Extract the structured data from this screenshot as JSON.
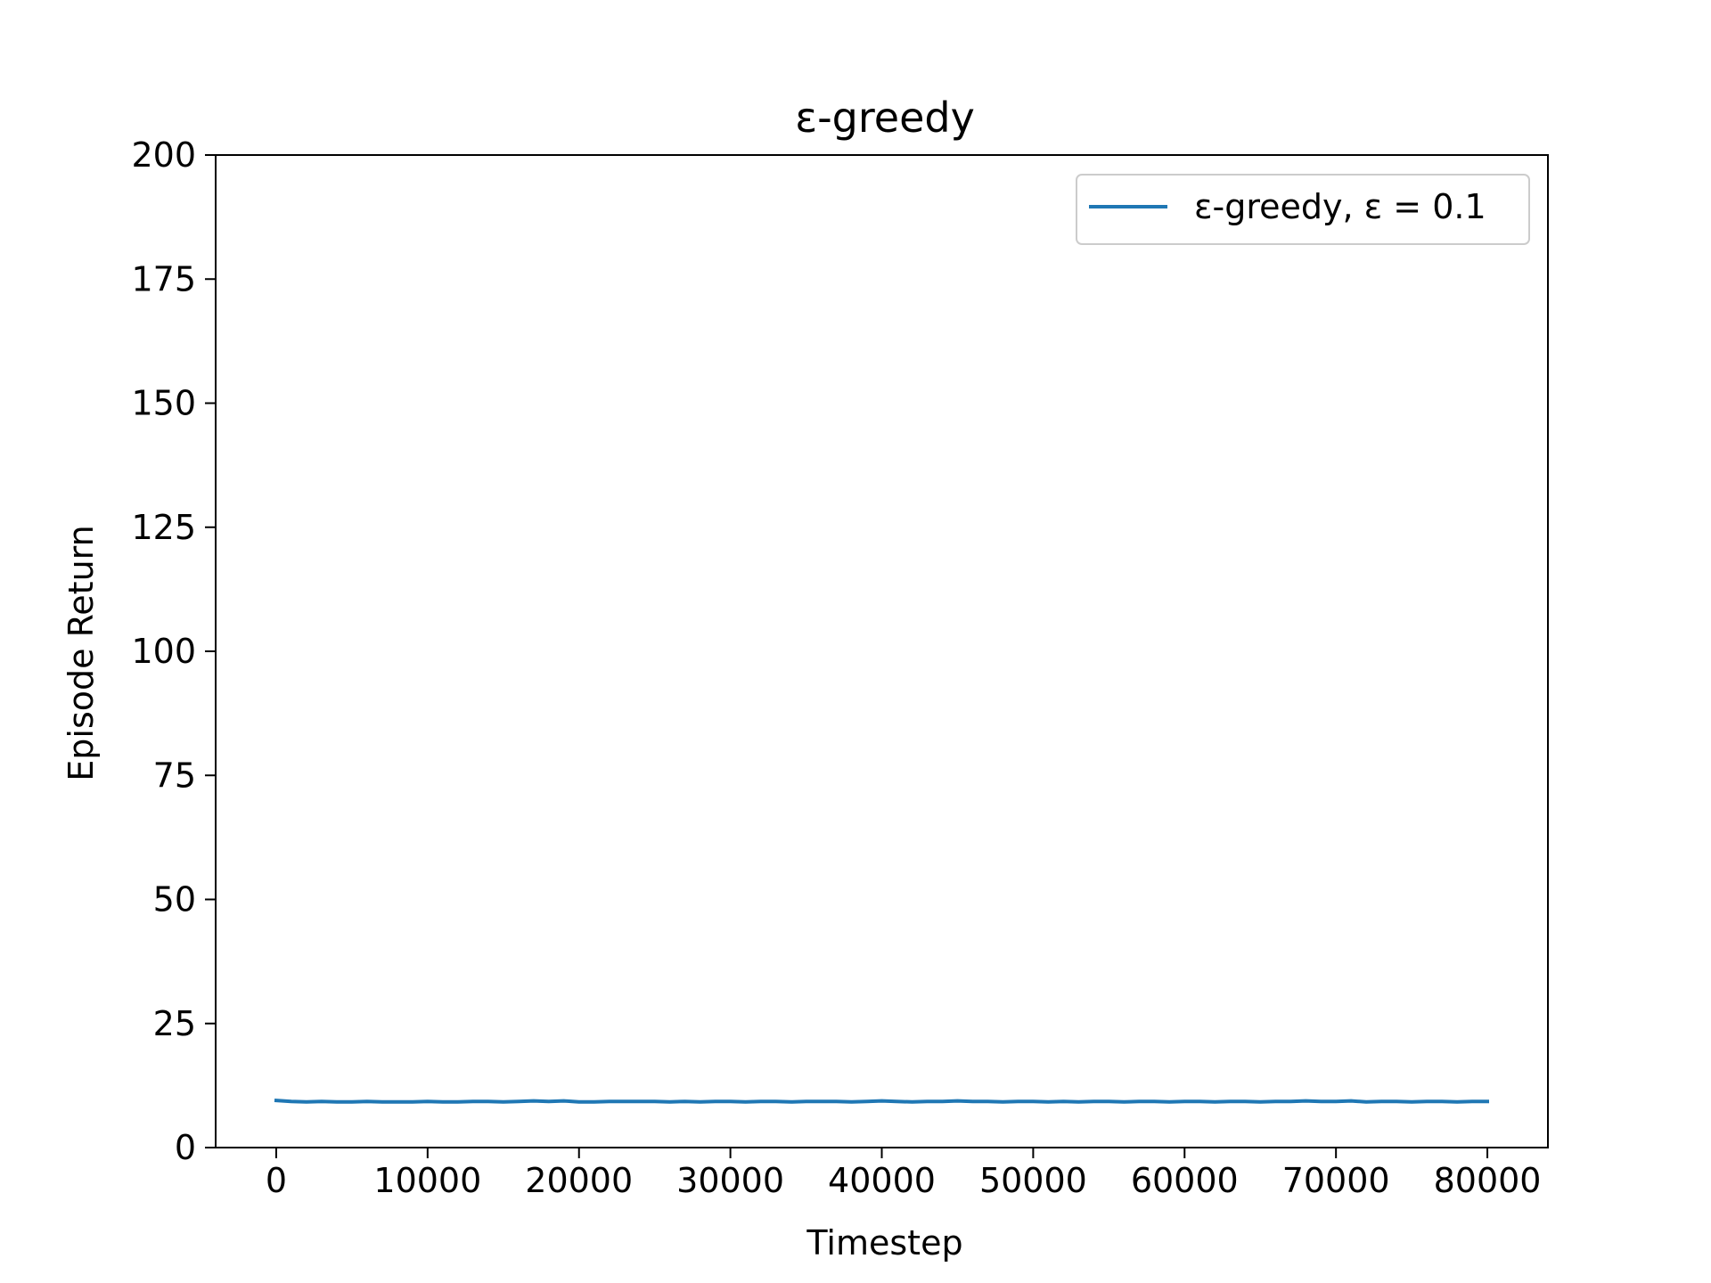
{
  "chart_data": {
    "type": "line",
    "title": "ε-greedy",
    "xlabel": "Timestep",
    "ylabel": "Episode Return",
    "xlim": [
      -4000,
      84000
    ],
    "ylim": [
      0,
      200
    ],
    "xticks": [
      "0",
      "10000",
      "20000",
      "30000",
      "40000",
      "50000",
      "60000",
      "70000",
      "80000"
    ],
    "yticks": [
      "0",
      "25",
      "50",
      "75",
      "100",
      "125",
      "150",
      "175",
      "200"
    ],
    "grid": false,
    "legend_position": "top-right",
    "series": [
      {
        "name": "ε-greedy, ε = 0.1",
        "color": "#1f77b4",
        "x": [
          0,
          1000,
          2000,
          3000,
          4000,
          5000,
          6000,
          7000,
          8000,
          9000,
          10000,
          11000,
          12000,
          13000,
          14000,
          15000,
          16000,
          17000,
          18000,
          19000,
          20000,
          21000,
          22000,
          23000,
          24000,
          25000,
          26000,
          27000,
          28000,
          29000,
          30000,
          31000,
          32000,
          33000,
          34000,
          35000,
          36000,
          37000,
          38000,
          39000,
          40000,
          41000,
          42000,
          43000,
          44000,
          45000,
          46000,
          47000,
          48000,
          49000,
          50000,
          51000,
          52000,
          53000,
          54000,
          55000,
          56000,
          57000,
          58000,
          59000,
          60000,
          61000,
          62000,
          63000,
          64000,
          65000,
          66000,
          67000,
          68000,
          69000,
          70000,
          71000,
          72000,
          73000,
          74000,
          75000,
          76000,
          77000,
          78000,
          79000,
          80000
        ],
        "y": [
          9.5,
          9.3,
          9.2,
          9.3,
          9.2,
          9.2,
          9.3,
          9.2,
          9.2,
          9.2,
          9.3,
          9.2,
          9.2,
          9.3,
          9.3,
          9.2,
          9.3,
          9.4,
          9.3,
          9.4,
          9.2,
          9.2,
          9.3,
          9.3,
          9.3,
          9.3,
          9.2,
          9.3,
          9.2,
          9.3,
          9.3,
          9.2,
          9.3,
          9.3,
          9.2,
          9.3,
          9.3,
          9.3,
          9.2,
          9.3,
          9.4,
          9.3,
          9.2,
          9.3,
          9.3,
          9.4,
          9.3,
          9.3,
          9.2,
          9.3,
          9.3,
          9.2,
          9.3,
          9.2,
          9.3,
          9.3,
          9.2,
          9.3,
          9.3,
          9.2,
          9.3,
          9.3,
          9.2,
          9.3,
          9.3,
          9.2,
          9.3,
          9.3,
          9.4,
          9.3,
          9.3,
          9.4,
          9.2,
          9.3,
          9.3,
          9.2,
          9.3,
          9.3,
          9.2,
          9.3,
          9.3
        ]
      }
    ]
  }
}
